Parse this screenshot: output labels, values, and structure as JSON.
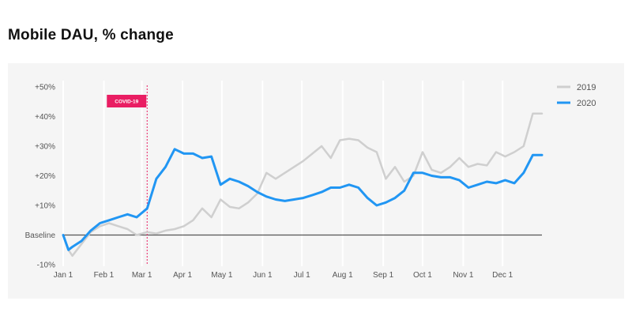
{
  "title": "Mobile DAU, % change",
  "chart_data": {
    "type": "line",
    "title": "Mobile DAU, % change",
    "xlabel": "",
    "ylabel": "",
    "x_ticks": [
      "Jan 1",
      "Feb 1",
      "Mar 1",
      "Apr 1",
      "May 1",
      "Jun 1",
      "Jul 1",
      "Aug 1",
      "Sep 1",
      "Oct 1",
      "Nov 1",
      "Dec 1"
    ],
    "y_ticks": [
      "+50%",
      "+40%",
      "+30%",
      "+20%",
      "+10%",
      "Baseline",
      "-10%"
    ],
    "ylim": [
      -10,
      50
    ],
    "xlim": [
      "2020-01-01",
      "2020-12-31"
    ],
    "grid": "vertical",
    "legend_position": "top-right",
    "baseline_value": 0,
    "colors": {
      "2019": "#cfcfcf",
      "2020": "#2196f3",
      "baseline": "#555555",
      "annotation": "#e91e63",
      "panel": "#f5f5f5"
    },
    "annotations": [
      {
        "label": "COVID-19",
        "x": "2020-03-05"
      }
    ],
    "series": [
      {
        "name": "2019",
        "x": [
          "2020-01-01",
          "2020-01-05",
          "2020-01-08",
          "2020-01-15",
          "2020-01-22",
          "2020-01-29",
          "2020-02-05",
          "2020-02-12",
          "2020-02-19",
          "2020-02-26",
          "2020-03-05",
          "2020-03-12",
          "2020-03-19",
          "2020-03-26",
          "2020-04-02",
          "2020-04-09",
          "2020-04-16",
          "2020-04-23",
          "2020-04-30",
          "2020-05-07",
          "2020-05-14",
          "2020-05-21",
          "2020-05-28",
          "2020-06-04",
          "2020-06-11",
          "2020-06-18",
          "2020-06-25",
          "2020-07-02",
          "2020-07-09",
          "2020-07-16",
          "2020-07-23",
          "2020-07-30",
          "2020-08-06",
          "2020-08-13",
          "2020-08-20",
          "2020-08-27",
          "2020-09-03",
          "2020-09-10",
          "2020-09-17",
          "2020-09-24",
          "2020-10-01",
          "2020-10-08",
          "2020-10-15",
          "2020-10-22",
          "2020-10-29",
          "2020-11-05",
          "2020-11-12",
          "2020-11-19",
          "2020-11-26",
          "2020-12-03",
          "2020-12-10",
          "2020-12-17",
          "2020-12-24",
          "2020-12-31"
        ],
        "values": [
          0,
          -5,
          -7,
          -3,
          1,
          3,
          4,
          3,
          2,
          0,
          1,
          0.5,
          1.5,
          2,
          3,
          5,
          9,
          6,
          12,
          9.5,
          9,
          11,
          14,
          21,
          19,
          21,
          23,
          25,
          27.5,
          30,
          26,
          32,
          32.5,
          32,
          29.5,
          28,
          19,
          23,
          18,
          20,
          28,
          22,
          21,
          23,
          26,
          23,
          24,
          23.5,
          28,
          26.5,
          28,
          30,
          41,
          41
        ]
      },
      {
        "name": "2020",
        "x": [
          "2020-01-01",
          "2020-01-05",
          "2020-01-08",
          "2020-01-15",
          "2020-01-22",
          "2020-01-29",
          "2020-02-05",
          "2020-02-12",
          "2020-02-19",
          "2020-02-26",
          "2020-03-05",
          "2020-03-12",
          "2020-03-19",
          "2020-03-26",
          "2020-04-02",
          "2020-04-09",
          "2020-04-16",
          "2020-04-23",
          "2020-04-30",
          "2020-05-07",
          "2020-05-14",
          "2020-05-21",
          "2020-05-28",
          "2020-06-04",
          "2020-06-11",
          "2020-06-18",
          "2020-06-25",
          "2020-07-02",
          "2020-07-09",
          "2020-07-16",
          "2020-07-23",
          "2020-07-30",
          "2020-08-06",
          "2020-08-13",
          "2020-08-20",
          "2020-08-27",
          "2020-09-03",
          "2020-09-10",
          "2020-09-17",
          "2020-09-24",
          "2020-10-01",
          "2020-10-08",
          "2020-10-15",
          "2020-10-22",
          "2020-10-29",
          "2020-11-05",
          "2020-11-12",
          "2020-11-19",
          "2020-11-26",
          "2020-12-03",
          "2020-12-10",
          "2020-12-17",
          "2020-12-24",
          "2020-12-31"
        ],
        "values": [
          0,
          -5,
          -4,
          -2,
          1.5,
          4,
          5,
          6,
          7,
          6,
          9,
          19,
          23,
          29,
          27.5,
          27.5,
          26,
          26.5,
          17,
          19,
          18,
          16.5,
          14.5,
          13,
          12,
          11.5,
          12,
          12.5,
          13.5,
          14.5,
          16,
          16,
          17,
          16,
          12.5,
          10,
          11,
          12.5,
          15,
          21,
          21,
          20,
          19.5,
          19.5,
          18.5,
          16,
          17,
          18,
          17.5,
          18.5,
          17.5,
          21,
          27,
          27
        ]
      }
    ]
  }
}
